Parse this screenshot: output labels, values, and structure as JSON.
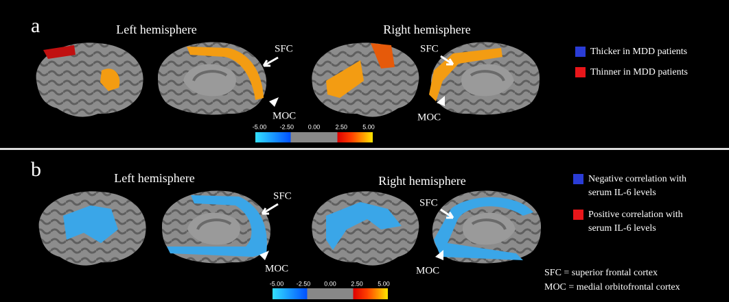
{
  "panels": [
    {
      "label": "a",
      "left_title": "Left hemisphere",
      "right_title": "Right  hemisphere",
      "annotations": [
        "SFC",
        "MOC",
        "SFC",
        "MOC"
      ],
      "colorbar_ticks": [
        "-5.00",
        "-2.50",
        "0.00",
        "2.50",
        "5.00"
      ],
      "legend": [
        {
          "lines": [
            "Thicker in MDD patients"
          ],
          "color": "#2a3cd6"
        },
        {
          "lines": [
            "Thinner in MDD patients"
          ],
          "color": "#e8161a"
        }
      ]
    },
    {
      "label": "b",
      "left_title": "Left hemisphere",
      "right_title": "Right  hemisphere",
      "annotations": [
        "SFC",
        "MOC",
        "SFC",
        "MOC"
      ],
      "colorbar_ticks": [
        "-5.00",
        "-2.50",
        "0.00",
        "2.50",
        "5.00"
      ],
      "legend": [
        {
          "lines": [
            "Negative correlation with",
            "serum IL-6 levels"
          ],
          "color": "#2a3cd6"
        },
        {
          "lines": [
            "Positive correlation with",
            "serum IL-6 levels"
          ],
          "color": "#e8161a"
        }
      ]
    }
  ],
  "footnotes": [
    "SFC = superior frontal cortex",
    "MOC = medial orbitofrontal cortex"
  ]
}
